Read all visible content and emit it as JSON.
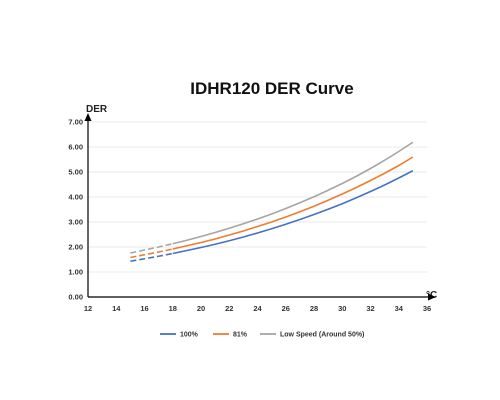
{
  "chart_data": {
    "type": "line",
    "title": "IDHR120  DER Curve",
    "xlabel": "°C",
    "ylabel": "DER",
    "xlim": [
      12,
      36
    ],
    "ylim": [
      0,
      7
    ],
    "x_ticks": [
      "12",
      "14",
      "16",
      "18",
      "20",
      "22",
      "24",
      "26",
      "28",
      "30",
      "32",
      "34",
      "36"
    ],
    "y_ticks": [
      "0.00",
      "1.00",
      "2.00",
      "3.00",
      "4.00",
      "5.00",
      "6.00",
      "7.00"
    ],
    "grid": "horizontal",
    "legend_position": "bottom",
    "x": [
      15,
      16,
      17,
      18,
      19,
      20,
      21,
      22,
      23,
      24,
      25,
      26,
      27,
      28,
      29,
      30,
      31,
      32,
      33,
      34,
      35
    ],
    "dashed_below_x": 18,
    "series": [
      {
        "name": "100%",
        "color": "#4472C4",
        "values": [
          1.43,
          1.53,
          1.63,
          1.74,
          1.86,
          1.98,
          2.11,
          2.25,
          2.4,
          2.56,
          2.73,
          2.91,
          3.1,
          3.3,
          3.51,
          3.73,
          3.97,
          4.22,
          4.48,
          4.76,
          5.05
        ]
      },
      {
        "name": "81%",
        "color": "#ED7D31",
        "values": [
          1.58,
          1.69,
          1.8,
          1.92,
          2.05,
          2.18,
          2.32,
          2.48,
          2.64,
          2.82,
          3.0,
          3.2,
          3.41,
          3.63,
          3.87,
          4.12,
          4.38,
          4.66,
          4.95,
          5.26,
          5.6
        ]
      },
      {
        "name": "Low Speed (Around 50%)",
        "color": "#A5A5A5",
        "values": [
          1.76,
          1.88,
          2.0,
          2.13,
          2.27,
          2.42,
          2.58,
          2.75,
          2.93,
          3.12,
          3.32,
          3.54,
          3.77,
          4.01,
          4.27,
          4.54,
          4.83,
          5.14,
          5.47,
          5.82,
          6.19
        ]
      }
    ]
  }
}
